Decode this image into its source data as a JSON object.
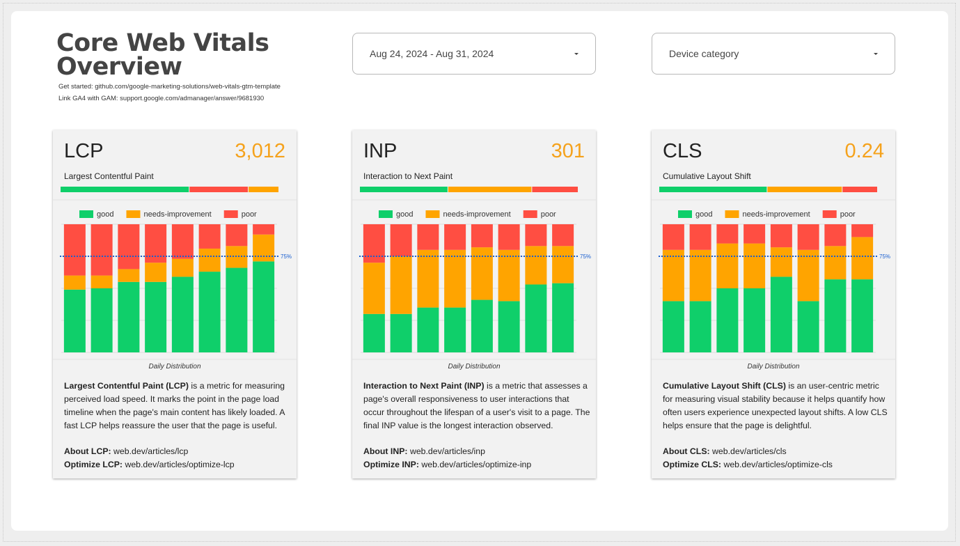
{
  "header": {
    "title": "Core Web Vitals Overview",
    "links": [
      "Get started: github.com/google-marketing-solutions/web-vitals-gtm-template",
      "Link GA4 with GAM: support.google.com/admanager/answer/9681930"
    ]
  },
  "filters": [
    {
      "label": "Aug 24, 2024 - Aug 31, 2024"
    },
    {
      "label": "Device category"
    }
  ],
  "cards": [
    {
      "metric": "LCP",
      "value": "3,012",
      "subtitle": "Largest Contentful Paint",
      "summary": [
        {
          "name": "good",
          "color": "#0fcf6a",
          "value": 59
        },
        {
          "name": "poor",
          "color": "#ff4e42",
          "value": 27
        },
        {
          "name": "needs-improvement",
          "color": "#ffa400",
          "value": 14
        }
      ],
      "caption": "Daily Distribution",
      "description": {
        "bold": "Largest Contentful Paint (LCP)",
        "text": " is a metric for measuring perceived load speed. It marks the point in the page load timeline when the page's main content has likely loaded. A fast LCP helps reassure the user that the page is useful."
      },
      "links": [
        {
          "label": "About LCP:",
          "text": " web.dev/articles/lcp"
        },
        {
          "label": "Optimize LCP:",
          "text": " web.dev/articles/optimize-lcp"
        }
      ]
    },
    {
      "metric": "INP",
      "value": "301",
      "subtitle": "Interaction to Next Paint",
      "summary": [
        {
          "name": "good",
          "color": "#0fcf6a",
          "value": 40
        },
        {
          "name": "needs-improvement",
          "color": "#ffa400",
          "value": 38
        },
        {
          "name": "poor",
          "color": "#ff4e42",
          "value": 21
        }
      ],
      "caption": "Daily Distribution",
      "description": {
        "bold": "Interaction to Next Paint (INP)",
        "text": " is a metric that assesses a page's overall responsiveness to user interactions that occur throughout the lifespan of a user's visit to a page. The final INP value is the longest interaction observed."
      },
      "links": [
        {
          "label": "About INP:",
          "text": " web.dev/articles/inp"
        },
        {
          "label": "Optimize INP:",
          "text": " web.dev/articles/optimize-inp"
        }
      ]
    },
    {
      "metric": "CLS",
      "value": "0.24",
      "subtitle": "Cumulative Layout Shift",
      "summary": [
        {
          "name": "good",
          "color": "#0fcf6a",
          "value": 49
        },
        {
          "name": "needs-improvement",
          "color": "#ffa400",
          "value": 34
        },
        {
          "name": "poor",
          "color": "#ff4e42",
          "value": 16
        }
      ],
      "caption": "Daily Distribution",
      "description": {
        "bold": "Cumulative Layout Shift (CLS)",
        "text": " is an user-centric metric for measuring visual stability because it helps quantify how often users experience unexpected layout shifts. A low CLS helps ensure that the page is delightful."
      },
      "links": [
        {
          "label": "About CLS:",
          "text": " web.dev/articles/cls"
        },
        {
          "label": "Optimize CLS:",
          "text": " web.dev/articles/optimize-cls"
        }
      ]
    }
  ],
  "chart_data": [
    {
      "type": "bar",
      "stacked": true,
      "categories": [
        null,
        null,
        null,
        null,
        null,
        null,
        null,
        null
      ],
      "series": [
        {
          "name": "good",
          "color": "#0fcf6a",
          "values": [
            49,
            50,
            55,
            55,
            59,
            63,
            66,
            71
          ]
        },
        {
          "name": "needs-improvement",
          "color": "#ffa400",
          "values": [
            11,
            10,
            10,
            15,
            14,
            18,
            17,
            21
          ]
        },
        {
          "name": "poor",
          "color": "#ff4e42",
          "values": [
            40,
            40,
            35,
            30,
            27,
            19,
            17,
            8
          ]
        }
      ],
      "ylim": [
        0,
        100
      ],
      "yticks": [
        0,
        25,
        50,
        75,
        100
      ],
      "grid": true,
      "reference_line": {
        "value": 75,
        "label": "75%"
      }
    },
    {
      "type": "bar",
      "stacked": true,
      "categories": [
        null,
        null,
        null,
        null,
        null,
        null,
        null,
        null
      ],
      "series": [
        {
          "name": "good",
          "color": "#0fcf6a",
          "values": [
            30,
            30,
            35,
            35,
            41,
            40,
            53,
            54
          ]
        },
        {
          "name": "needs-improvement",
          "color": "#ffa400",
          "values": [
            40,
            45,
            45,
            45,
            41,
            40,
            30,
            29
          ]
        },
        {
          "name": "poor",
          "color": "#ff4e42",
          "values": [
            30,
            25,
            20,
            20,
            18,
            20,
            17,
            17
          ]
        }
      ],
      "ylim": [
        0,
        100
      ],
      "yticks": [
        0,
        25,
        50,
        75,
        100
      ],
      "grid": true,
      "reference_line": {
        "value": 75,
        "label": "75%"
      }
    },
    {
      "type": "bar",
      "stacked": true,
      "categories": [
        null,
        null,
        null,
        null,
        null,
        null,
        null,
        null
      ],
      "series": [
        {
          "name": "good",
          "color": "#0fcf6a",
          "values": [
            40,
            40,
            50,
            50,
            59,
            40,
            57,
            57
          ]
        },
        {
          "name": "needs-improvement",
          "color": "#ffa400",
          "values": [
            40,
            40,
            35,
            35,
            23,
            40,
            26,
            33
          ]
        },
        {
          "name": "poor",
          "color": "#ff4e42",
          "values": [
            20,
            20,
            15,
            15,
            18,
            20,
            17,
            10
          ]
        }
      ],
      "ylim": [
        0,
        100
      ],
      "yticks": [
        0,
        25,
        50,
        75,
        100
      ],
      "grid": true,
      "reference_line": {
        "value": 75,
        "label": "75%"
      }
    }
  ]
}
